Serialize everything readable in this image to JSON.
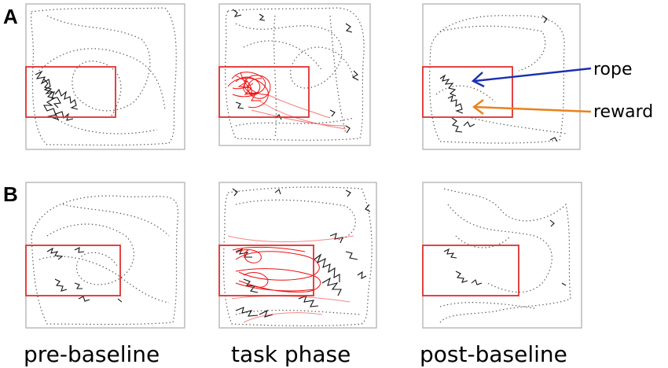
{
  "panels": {
    "a_letter": "A",
    "b_letter": "B"
  },
  "columns": {
    "pre": "pre-baseline",
    "task": "task phase",
    "post": "post-baseline"
  },
  "annotations": {
    "rope": "rope",
    "reward": "reward"
  },
  "colors": {
    "roi_box": "#e03030",
    "task_trace": "#ee1111",
    "rope_arrow": "#1a2fb0",
    "reward_arrow": "#e8821e",
    "trajectory": "#1a1a1a"
  }
}
